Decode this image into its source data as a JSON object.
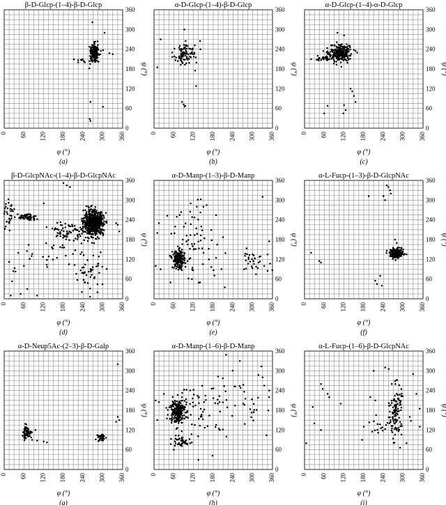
{
  "figure": {
    "grid": true,
    "x_ticks": [
      "0",
      "60",
      "120",
      "180",
      "240",
      "300",
      "360"
    ],
    "y_ticks": [
      "0",
      "60",
      "120",
      "180",
      "240",
      "300",
      "360"
    ]
  },
  "chart_data": [
    {
      "type": "scatter",
      "panel": "(a)",
      "title": "β-D-Glcp-(1–4)-β-D-Glcp",
      "xlabel": "φ (°)",
      "ylabel": "ψ (°)",
      "xlim": [
        0,
        360
      ],
      "ylim": [
        0,
        360
      ],
      "grid": true,
      "clusters": [
        {
          "cx": 275,
          "cy": 228,
          "sx": 8,
          "sy": 15,
          "n": 170
        },
        {
          "cx": 230,
          "cy": 210,
          "sx": 10,
          "sy": 4,
          "n": 6
        }
      ],
      "points": [
        [
          268,
          322
        ],
        [
          305,
          290
        ],
        [
          320,
          228
        ],
        [
          330,
          225
        ],
        [
          300,
          65
        ],
        [
          262,
          80
        ],
        [
          260,
          28
        ],
        [
          262,
          22
        ],
        [
          225,
          200
        ],
        [
          245,
          200
        ]
      ]
    },
    {
      "type": "scatter",
      "panel": "(b)",
      "title": "α-D-Glcp-(1–4)-β-D-Glcp",
      "xlabel": "φ (°)",
      "ylabel": "ψ (°)",
      "xlim": [
        0,
        360
      ],
      "ylim": [
        0,
        360
      ],
      "grid": true,
      "clusters": [
        {
          "cx": 100,
          "cy": 228,
          "sx": 14,
          "sy": 16,
          "n": 80
        },
        {
          "cx": 70,
          "cy": 215,
          "sx": 8,
          "sy": 7,
          "n": 8
        }
      ],
      "points": [
        [
          20,
          270
        ],
        [
          92,
          300
        ],
        [
          140,
          265
        ],
        [
          55,
          230
        ],
        [
          10,
          185
        ],
        [
          125,
          175
        ],
        [
          128,
          128
        ],
        [
          85,
          80
        ],
        [
          90,
          72
        ],
        [
          95,
          68
        ],
        [
          93,
          66
        ]
      ]
    },
    {
      "type": "scatter",
      "panel": "(c)",
      "title": "α-D-Glcp-(1–4)-α-D-Glcp",
      "xlabel": "φ (°)",
      "ylabel": "ψ (°)",
      "xlim": [
        0,
        360
      ],
      "ylim": [
        0,
        360
      ],
      "grid": true,
      "clusters": [
        {
          "cx": 108,
          "cy": 228,
          "sx": 15,
          "sy": 12,
          "n": 270
        },
        {
          "cx": 60,
          "cy": 212,
          "sx": 12,
          "sy": 5,
          "n": 25
        }
      ],
      "points": [
        [
          100,
          290
        ],
        [
          120,
          282
        ],
        [
          150,
          238
        ],
        [
          155,
          235
        ],
        [
          160,
          230
        ],
        [
          140,
          120
        ],
        [
          145,
          112
        ],
        [
          150,
          98
        ],
        [
          155,
          80
        ],
        [
          125,
          55
        ],
        [
          118,
          45
        ],
        [
          120,
          70
        ],
        [
          70,
          68
        ],
        [
          60,
          45
        ],
        [
          40,
          220
        ],
        [
          20,
          210
        ]
      ]
    },
    {
      "type": "scatter",
      "panel": "(d)",
      "title": "β-D-GlcpNAc-(1–4)-β-D-GlcpNAc",
      "xlabel": "φ (°)",
      "ylabel": "ψ (°)",
      "xlim": [
        0,
        360
      ],
      "ylim": [
        0,
        360
      ],
      "grid": true,
      "clusters": [
        {
          "cx": 272,
          "cy": 230,
          "sx": 15,
          "sy": 18,
          "n": 650
        },
        {
          "cx": 70,
          "cy": 248,
          "sx": 14,
          "sy": 6,
          "n": 60
        },
        {
          "cx": 15,
          "cy": 250,
          "sx": 10,
          "sy": 20,
          "n": 30
        },
        {
          "cx": 195,
          "cy": 205,
          "sx": 22,
          "sy": 15,
          "n": 60
        },
        {
          "cx": 260,
          "cy": 80,
          "sx": 25,
          "sy": 30,
          "n": 45
        },
        {
          "cx": 175,
          "cy": 150,
          "sx": 40,
          "sy": 30,
          "n": 30
        },
        {
          "cx": 40,
          "cy": 90,
          "sx": 25,
          "sy": 40,
          "n": 12
        }
      ],
      "points": [
        [
          180,
          352
        ],
        [
          190,
          345
        ],
        [
          200,
          340
        ],
        [
          120,
          290
        ],
        [
          5,
          280
        ],
        [
          10,
          275
        ],
        [
          60,
          100
        ],
        [
          20,
          10
        ],
        [
          50,
          15
        ],
        [
          70,
          30
        ],
        [
          100,
          10
        ],
        [
          345,
          225
        ],
        [
          340,
          230
        ],
        [
          350,
          205
        ]
      ]
    },
    {
      "type": "scatter",
      "panel": "(e)",
      "title": "α-D-Manp-(1–3)-β-D-Manp",
      "xlabel": "φ (°)",
      "ylabel": "ψ (°)",
      "xlim": [
        0,
        360
      ],
      "ylim": [
        0,
        360
      ],
      "grid": true,
      "clusters": [
        {
          "cx": 75,
          "cy": 120,
          "sx": 9,
          "sy": 14,
          "n": 200
        },
        {
          "cx": 300,
          "cy": 118,
          "sx": 25,
          "sy": 15,
          "n": 30
        },
        {
          "cx": 130,
          "cy": 170,
          "sx": 40,
          "sy": 55,
          "n": 70
        }
      ],
      "points": [
        [
          15,
          230
        ],
        [
          10,
          200
        ],
        [
          5,
          100
        ],
        [
          20,
          90
        ],
        [
          50,
          50
        ],
        [
          140,
          50
        ],
        [
          160,
          285
        ],
        [
          150,
          280
        ],
        [
          130,
          280
        ],
        [
          110,
          265
        ],
        [
          330,
          310
        ],
        [
          350,
          175
        ],
        [
          215,
          35
        ],
        [
          335,
          100
        ],
        [
          345,
          85
        ],
        [
          310,
          75
        ],
        [
          345,
          135
        ]
      ]
    },
    {
      "type": "scatter",
      "panel": "(f)",
      "title": "α-L-Fucp-(1–3)-β-D-GlcpNAc",
      "xlabel": "φ (°)",
      "ylabel": "ψ (°)",
      "xlim": [
        0,
        360
      ],
      "ylim": [
        0,
        360
      ],
      "grid": true,
      "clusters": [
        {
          "cx": 280,
          "cy": 138,
          "sx": 10,
          "sy": 7,
          "n": 190
        }
      ],
      "points": [
        [
          255,
          340
        ],
        [
          260,
          330
        ],
        [
          262,
          320
        ],
        [
          240,
          312
        ],
        [
          245,
          300
        ],
        [
          195,
          312
        ],
        [
          250,
          345
        ],
        [
          275,
          180
        ],
        [
          280,
          170
        ],
        [
          300,
          150
        ],
        [
          310,
          135
        ],
        [
          20,
          140
        ],
        [
          45,
          115
        ],
        [
          50,
          110
        ],
        [
          215,
          55
        ],
        [
          220,
          45
        ],
        [
          230,
          70
        ],
        [
          235,
          40
        ]
      ]
    },
    {
      "type": "scatter",
      "panel": "(g)",
      "title": "α-D-Neup5Ac-(2–3)-β-D-Galp",
      "xlabel": "φ (°)",
      "ylabel": "ψ (°)",
      "xlim": [
        0,
        360
      ],
      "ylim": [
        0,
        360
      ],
      "grid": true,
      "clusters": [
        {
          "cx": 68,
          "cy": 113,
          "sx": 8,
          "sy": 10,
          "n": 55
        },
        {
          "cx": 297,
          "cy": 97,
          "sx": 6,
          "sy": 6,
          "n": 35
        }
      ],
      "points": [
        [
          345,
          320
        ],
        [
          345,
          160
        ],
        [
          340,
          145
        ],
        [
          350,
          150
        ],
        [
          100,
          88
        ],
        [
          120,
          85
        ],
        [
          130,
          82
        ],
        [
          85,
          90
        ],
        [
          95,
          120
        ]
      ]
    },
    {
      "type": "scatter",
      "panel": "(h)",
      "title": "α-D-Manp-(1–6)-β-D-Manp",
      "xlabel": "φ (°)",
      "ylabel": "ψ (°)",
      "xlim": [
        0,
        360
      ],
      "ylim": [
        0,
        360
      ],
      "grid": true,
      "clusters": [
        {
          "cx": 70,
          "cy": 178,
          "sx": 12,
          "sy": 18,
          "n": 200
        },
        {
          "cx": 78,
          "cy": 85,
          "sx": 18,
          "sy": 8,
          "n": 40
        },
        {
          "cx": 150,
          "cy": 180,
          "sx": 45,
          "sy": 55,
          "n": 70
        },
        {
          "cx": 290,
          "cy": 200,
          "sx": 45,
          "sy": 50,
          "n": 35
        }
      ],
      "points": [
        [
          5,
          210
        ],
        [
          15,
          205
        ],
        [
          30,
          230
        ],
        [
          10,
          150
        ],
        [
          330,
          280
        ],
        [
          335,
          255
        ],
        [
          350,
          240
        ],
        [
          350,
          220
        ],
        [
          200,
          120
        ],
        [
          220,
          100
        ],
        [
          60,
          60
        ],
        [
          80,
          75
        ],
        [
          110,
          80
        ],
        [
          115,
          82
        ]
      ]
    },
    {
      "type": "scatter",
      "panel": "(i)",
      "title": "α-L-Fucp-(1–6)-β-D-GlcpNAc",
      "xlabel": "φ (°)",
      "ylabel": "ψ (°)",
      "xlim": [
        0,
        360
      ],
      "ylim": [
        0,
        360
      ],
      "grid": true,
      "clusters": [
        {
          "cx": 277,
          "cy": 178,
          "sx": 9,
          "sy": 40,
          "n": 110
        },
        {
          "cx": 240,
          "cy": 130,
          "sx": 30,
          "sy": 20,
          "n": 20
        }
      ],
      "points": [
        [
          245,
          310
        ],
        [
          210,
          300
        ],
        [
          265,
          260
        ],
        [
          280,
          230
        ],
        [
          330,
          290
        ],
        [
          340,
          230
        ],
        [
          350,
          185
        ],
        [
          320,
          160
        ],
        [
          50,
          260
        ],
        [
          55,
          245
        ],
        [
          70,
          230
        ],
        [
          75,
          220
        ],
        [
          110,
          200
        ],
        [
          25,
          190
        ],
        [
          30,
          140
        ],
        [
          50,
          120
        ],
        [
          5,
          80
        ],
        [
          180,
          130
        ],
        [
          175,
          90
        ],
        [
          310,
          80
        ],
        [
          350,
          130
        ],
        [
          200,
          220
        ],
        [
          215,
          210
        ]
      ]
    }
  ]
}
